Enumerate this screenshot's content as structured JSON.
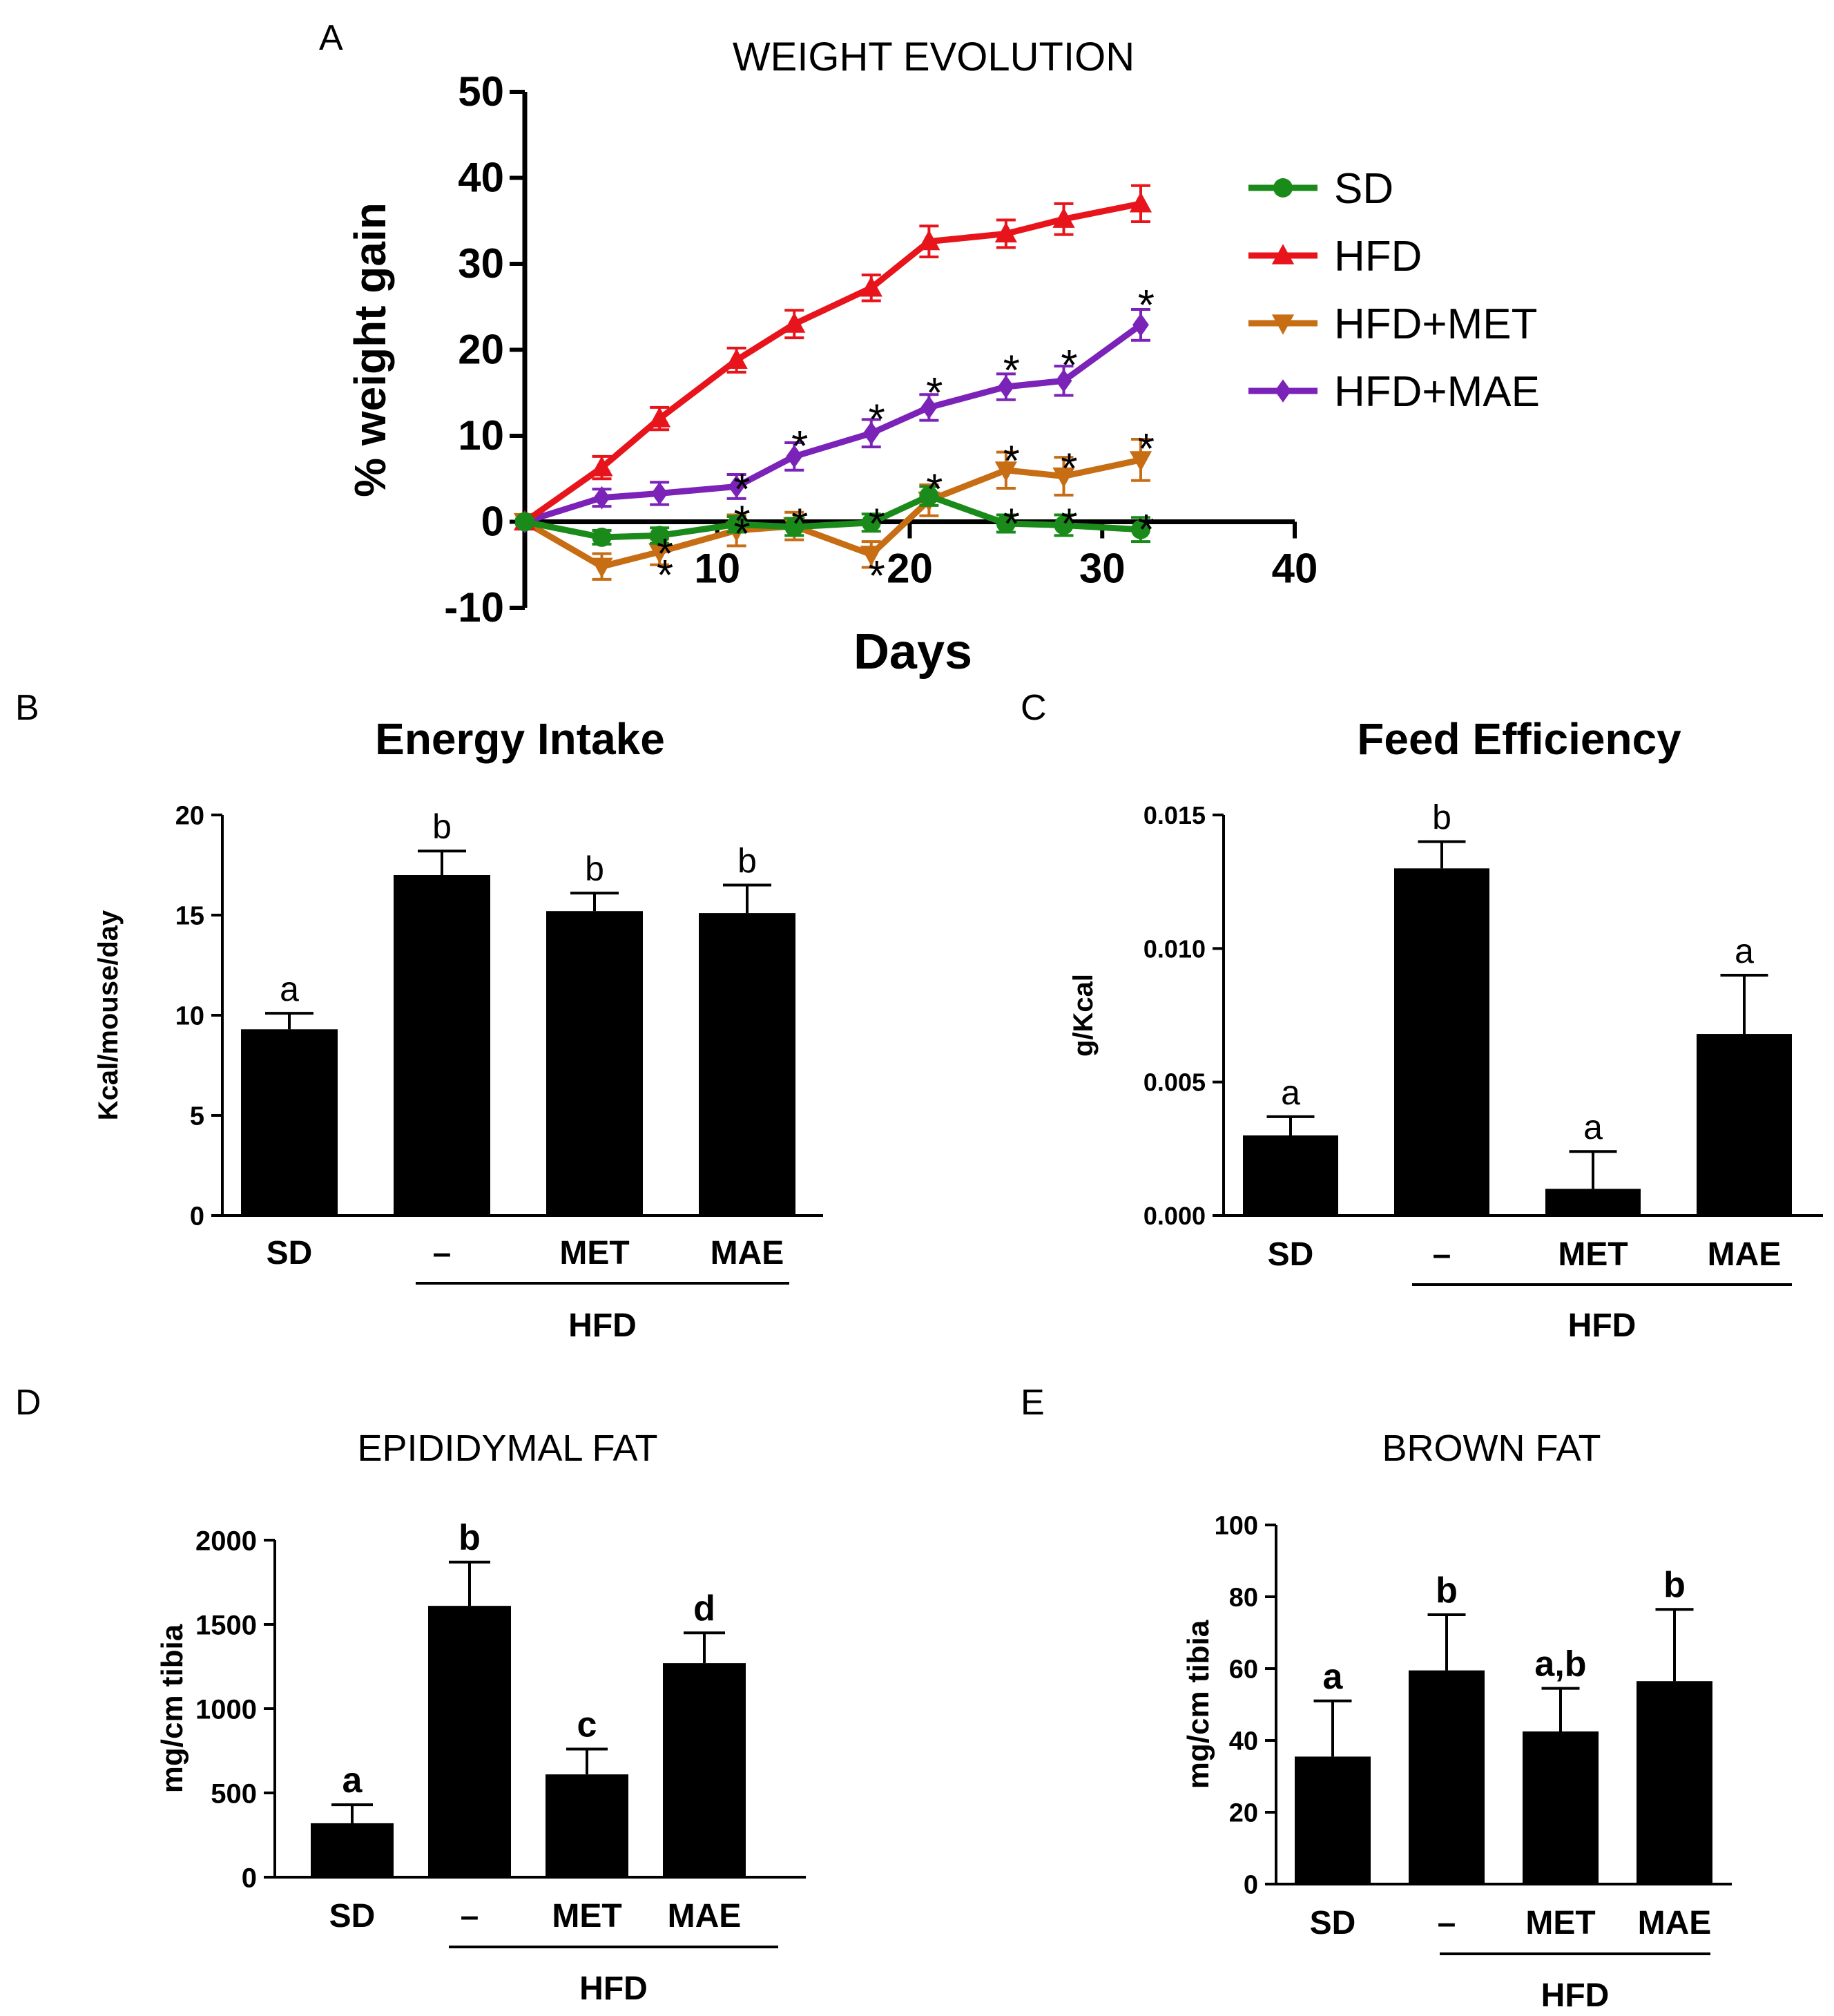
{
  "panel_letters": [
    "A",
    "B",
    "C",
    "D",
    "E"
  ],
  "chart_data": [
    {
      "panel": "A",
      "type": "line",
      "title": "WEIGHT EVOLUTION",
      "xlabel": "Days",
      "ylabel": "% weight gain",
      "xlim": [
        0,
        40
      ],
      "ylim": [
        -10,
        50
      ],
      "xticks": [
        "10",
        "20",
        "30",
        "40"
      ],
      "yticks": [
        "-10",
        "0",
        "10",
        "20",
        "30",
        "40",
        "50"
      ],
      "legend_position": "right",
      "grid": false,
      "series": [
        {
          "name": "SD",
          "color": "#1a8a1a",
          "marker": "circle",
          "x": [
            0,
            4,
            7,
            11,
            14,
            18,
            21,
            25,
            28,
            32
          ],
          "y": [
            0,
            -1.8,
            -1.6,
            -0.3,
            -0.6,
            -0.1,
            3.0,
            -0.2,
            -0.4,
            -0.9
          ],
          "err": [
            0.3,
            0.8,
            0.9,
            0.9,
            1.0,
            1.0,
            1.1,
            1.0,
            1.2,
            1.4
          ]
        },
        {
          "name": "HFD",
          "color": "#e8141b",
          "marker": "triangle-up",
          "x": [
            0,
            4,
            7,
            11,
            14,
            18,
            21,
            25,
            28,
            32
          ],
          "y": [
            0,
            6.3,
            12.0,
            18.8,
            23.0,
            27.2,
            32.6,
            33.5,
            35.2,
            37.0
          ],
          "err": [
            0.3,
            1.3,
            1.3,
            1.4,
            1.6,
            1.5,
            1.8,
            1.6,
            1.8,
            2.1
          ]
        },
        {
          "name": "HFD+MET",
          "color": "#c76d14",
          "marker": "triangle-down",
          "x": [
            0,
            4,
            7,
            11,
            14,
            18,
            21,
            25,
            28,
            32
          ],
          "y": [
            0,
            -5.2,
            -3.5,
            -1.0,
            -0.5,
            -3.8,
            2.5,
            6.0,
            5.3,
            7.2
          ],
          "err": [
            0.3,
            1.5,
            1.5,
            1.8,
            1.6,
            1.5,
            1.8,
            2.1,
            2.2,
            2.4
          ]
        },
        {
          "name": "HFD+MAE",
          "color": "#7b22b8",
          "marker": "diamond",
          "x": [
            0,
            4,
            7,
            11,
            14,
            18,
            21,
            25,
            28,
            32
          ],
          "y": [
            0,
            2.8,
            3.3,
            4.1,
            7.6,
            10.3,
            13.3,
            15.7,
            16.4,
            22.9
          ],
          "err": [
            0.3,
            1.0,
            1.3,
            1.4,
            1.6,
            1.6,
            1.5,
            1.5,
            1.7,
            1.8
          ]
        }
      ],
      "annotations": [
        {
          "text": "*",
          "x": 7,
          "y": -3.0
        },
        {
          "text": "*",
          "x": 7,
          "y": -5.5
        },
        {
          "text": "*",
          "x": 11,
          "y": 4.5
        },
        {
          "text": "*",
          "x": 11,
          "y": 0.8
        },
        {
          "text": "*",
          "x": 11,
          "y": -0.7
        },
        {
          "text": "*",
          "x": 14,
          "y": 9.5
        },
        {
          "text": "*",
          "x": 14,
          "y": 0.5
        },
        {
          "text": "*",
          "x": 18,
          "y": 12.6
        },
        {
          "text": "*",
          "x": 18,
          "y": 0.5
        },
        {
          "text": "*",
          "x": 18,
          "y": -5.6
        },
        {
          "text": "*",
          "x": 21,
          "y": 15.7
        },
        {
          "text": "*",
          "x": 21,
          "y": 4.5
        },
        {
          "text": "*",
          "x": 25,
          "y": 18.3
        },
        {
          "text": "*",
          "x": 25,
          "y": 7.8
        },
        {
          "text": "*",
          "x": 25,
          "y": 0.5
        },
        {
          "text": "*",
          "x": 28,
          "y": 18.9
        },
        {
          "text": "*",
          "x": 28,
          "y": 6.9
        },
        {
          "text": "*",
          "x": 28,
          "y": 0.5
        },
        {
          "text": "*",
          "x": 32,
          "y": 25.9
        },
        {
          "text": "*",
          "x": 32,
          "y": 9.2
        },
        {
          "text": "*",
          "x": 32,
          "y": -0.2
        }
      ]
    },
    {
      "panel": "B",
      "type": "bar",
      "title": "Energy Intake",
      "ylabel": "Kcal/mouse/day",
      "ylim": [
        0,
        20
      ],
      "yticks": [
        "0",
        "5",
        "10",
        "15",
        "20"
      ],
      "categories": [
        "SD",
        "–",
        "MET",
        "MAE"
      ],
      "group_label": "HFD",
      "values": [
        9.3,
        17.0,
        15.2,
        15.1
      ],
      "errors": [
        0.8,
        1.2,
        0.9,
        1.4
      ],
      "letters": [
        "a",
        "b",
        "b",
        "b"
      ]
    },
    {
      "panel": "C",
      "type": "bar",
      "title": "Feed Efficiency",
      "ylabel": "g/Kcal",
      "ylim": [
        0,
        0.015
      ],
      "yticks": [
        "0.000",
        "0.005",
        "0.010",
        "0.015"
      ],
      "categories": [
        "SD",
        "–",
        "MET",
        "MAE"
      ],
      "group_label": "HFD",
      "values": [
        0.003,
        0.013,
        0.001,
        0.0068
      ],
      "errors": [
        0.0007,
        0.001,
        0.0014,
        0.0022
      ],
      "letters": [
        "a",
        "b",
        "a",
        "a"
      ]
    },
    {
      "panel": "D",
      "type": "bar",
      "title": "EPIDIDYMAL FAT",
      "ylabel": "mg/cm tibia",
      "ylim": [
        0,
        2000
      ],
      "yticks": [
        "0",
        "500",
        "1000",
        "1500",
        "2000"
      ],
      "categories": [
        "SD",
        "–",
        "MET",
        "MAE"
      ],
      "group_label": "HFD",
      "values": [
        320,
        1610,
        610,
        1270
      ],
      "errors": [
        110,
        260,
        150,
        180
      ],
      "letters": [
        "a",
        "b",
        "c",
        "d"
      ]
    },
    {
      "panel": "E",
      "type": "bar",
      "title": "BROWN FAT",
      "ylabel": "mg/cm tibia",
      "ylim": [
        0,
        100
      ],
      "yticks": [
        "0",
        "20",
        "40",
        "60",
        "80",
        "100"
      ],
      "categories": [
        "SD",
        "–",
        "MET",
        "MAE"
      ],
      "group_label": "HFD",
      "values": [
        35.5,
        59.5,
        42.5,
        56.5
      ],
      "errors": [
        15.5,
        15.5,
        12.0,
        20.0
      ],
      "letters": [
        "a",
        "b",
        "a,b",
        "b"
      ]
    }
  ]
}
